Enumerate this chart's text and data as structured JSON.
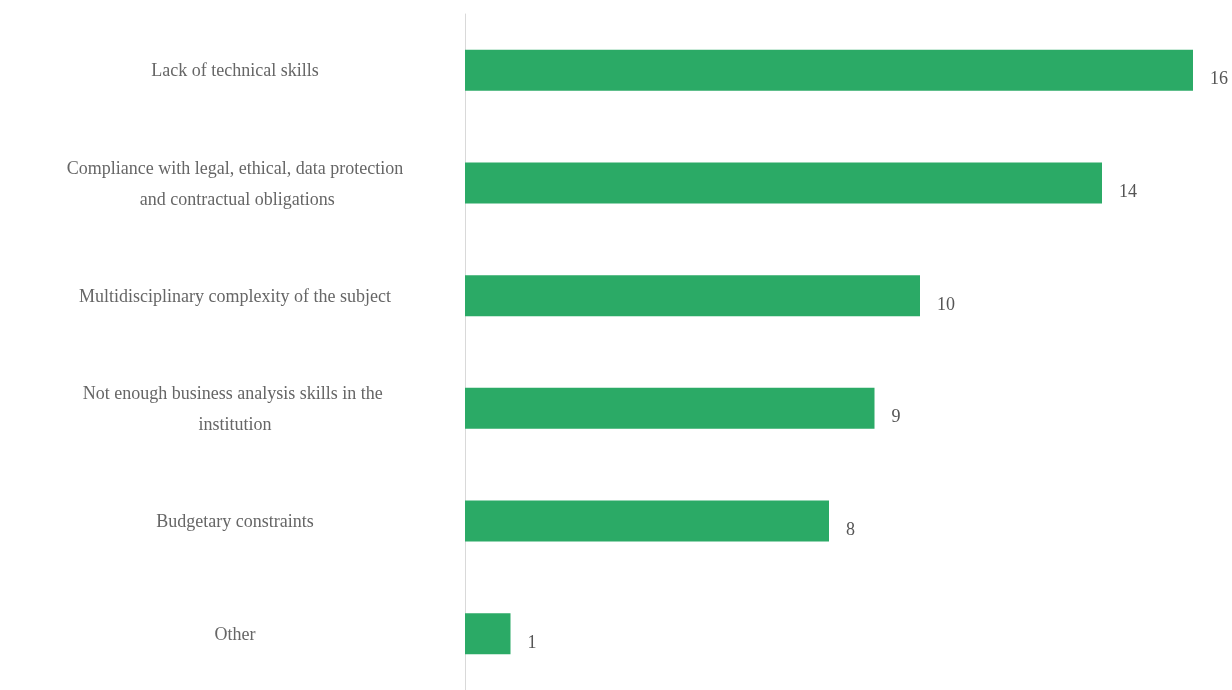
{
  "chart_data": {
    "type": "bar",
    "orientation": "horizontal",
    "categories": [
      "Lack of technical skills",
      "Compliance with legal, ethical, data protection and contractual obligations",
      "Multidisciplinary complexity of the subject",
      "Not enough business analysis skills in the institution",
      "Budgetary constraints",
      "Other"
    ],
    "values": [
      16,
      14,
      10,
      9,
      8,
      1
    ],
    "color": "#2baa66",
    "data_labels": true
  }
}
